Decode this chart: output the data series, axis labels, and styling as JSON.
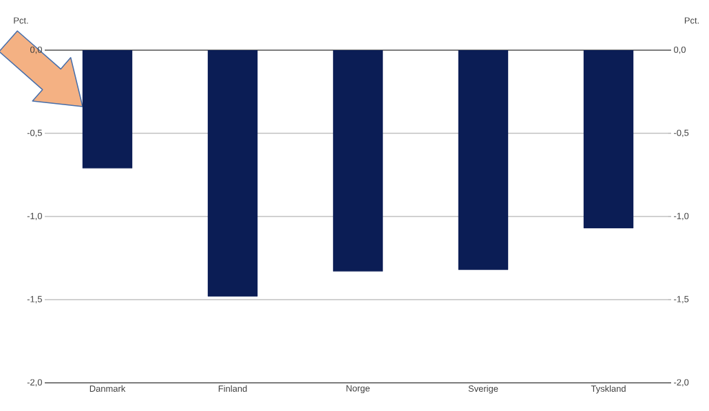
{
  "chart_data": {
    "type": "bar",
    "ylabel": "Pct.",
    "y2label": "Pct.",
    "categories": [
      "Danmark",
      "Finland",
      "Norge",
      "Sverige",
      "Tyskland"
    ],
    "values": [
      -0.71,
      -1.48,
      -1.33,
      -1.32,
      -1.07
    ],
    "color": "#0b1d55",
    "ylim": [
      -2.0,
      0.0
    ],
    "yticks": [
      {
        "value": -2.0,
        "label": "-2,0"
      },
      {
        "value": -1.5,
        "label": "-1,5"
      },
      {
        "value": -1.0,
        "label": "-1,0"
      },
      {
        "value": -0.5,
        "label": "-0,5"
      },
      {
        "value": 0.0,
        "label": "0,0"
      }
    ],
    "y2lim": [
      -2.0,
      0.0
    ],
    "y2ticks": [
      {
        "value": -2.0,
        "label": "-2,0"
      },
      {
        "value": -1.5,
        "label": "-1,5"
      },
      {
        "value": -1.0,
        "label": "-1,0"
      },
      {
        "value": -0.5,
        "label": "-0,5"
      },
      {
        "value": 0.0,
        "label": "0,0"
      }
    ],
    "grid": "y"
  }
}
